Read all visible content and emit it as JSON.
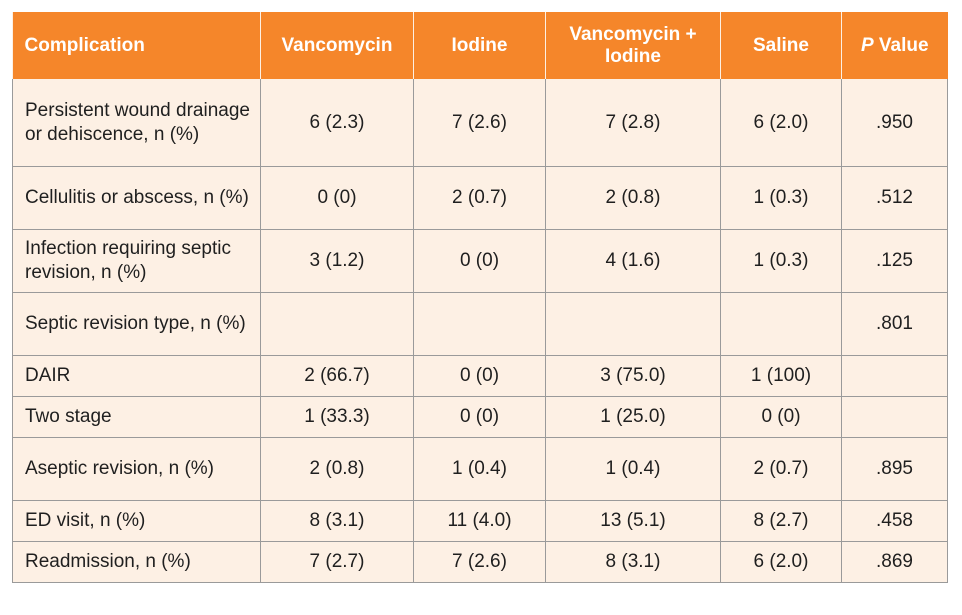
{
  "table": {
    "headers": {
      "complication": "Complication",
      "vancomycin": "Vancomycin",
      "iodine": "Iodine",
      "vanc_iodine_line1": "Vancomycin +",
      "vanc_iodine_line2": "Iodine",
      "saline": "Saline",
      "p_italic": "P",
      "p_rest": " Value"
    },
    "rows": [
      {
        "complication": "Persistent wound drainage or dehiscence, n (%)",
        "vancomycin": "6 (2.3)",
        "iodine": "7 (2.6)",
        "vanc_iodine": "7 (2.8)",
        "saline": "6 (2.0)",
        "p_value": ".950"
      },
      {
        "complication": "Cellulitis or abscess, n (%)",
        "vancomycin": "0 (0)",
        "iodine": "2 (0.7)",
        "vanc_iodine": "2 (0.8)",
        "saline": "1 (0.3)",
        "p_value": ".512"
      },
      {
        "complication": "Infection requiring septic revision, n (%)",
        "vancomycin": "3 (1.2)",
        "iodine": "0 (0)",
        "vanc_iodine": "4 (1.6)",
        "saline": "1 (0.3)",
        "p_value": ".125"
      },
      {
        "complication": "Septic revision type, n (%)",
        "vancomycin": "",
        "iodine": "",
        "vanc_iodine": "",
        "saline": "",
        "p_value": ".801"
      },
      {
        "complication": "DAIR",
        "vancomycin": "2 (66.7)",
        "iodine": "0 (0)",
        "vanc_iodine": "3 (75.0)",
        "saline": "1 (100)",
        "p_value": ""
      },
      {
        "complication": "Two stage",
        "vancomycin": "1 (33.3)",
        "iodine": "0 (0)",
        "vanc_iodine": "1 (25.0)",
        "saline": "0 (0)",
        "p_value": ""
      },
      {
        "complication": "Aseptic revision, n (%)",
        "vancomycin": "2 (0.8)",
        "iodine": "1 (0.4)",
        "vanc_iodine": "1 (0.4)",
        "saline": "2 (0.7)",
        "p_value": ".895"
      },
      {
        "complication": "ED visit, n (%)",
        "vancomycin": "8 (3.1)",
        "iodine": "11 (4.0)",
        "vanc_iodine": "13 (5.1)",
        "saline": "8 (2.7)",
        "p_value": ".458"
      },
      {
        "complication": "Readmission, n (%)",
        "vancomycin": "7 (2.7)",
        "iodine": "7 (2.6)",
        "vanc_iodine": "8 (3.1)",
        "saline": "6 (2.0)",
        "p_value": ".869"
      }
    ]
  },
  "colors": {
    "header_bg": "#f5862a",
    "header_text": "#ffffff",
    "body_bg": "#fdf0e4",
    "grid_line": "#9a9a9a"
  }
}
